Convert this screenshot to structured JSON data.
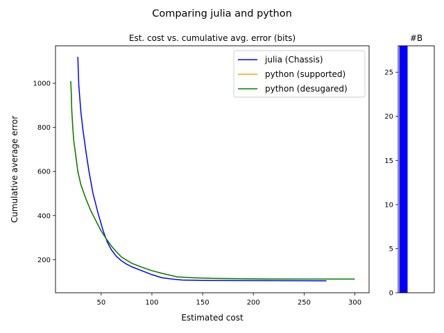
{
  "suptitle": "Comparing julia and python",
  "chart_data": [
    {
      "type": "line",
      "title": "Est. cost vs. cumulative avg. error (bits)",
      "xlabel": "Estimated cost",
      "ylabel": "Cumulative average error",
      "xlim": [
        5,
        314
      ],
      "ylim": [
        50,
        1170
      ],
      "xticks": [
        50,
        100,
        150,
        200,
        250,
        300
      ],
      "yticks": [
        200,
        400,
        600,
        800,
        1000
      ],
      "grid": false,
      "legend_position": "top-right",
      "series": [
        {
          "name": "julia (Chassis)",
          "color": "#0000ff",
          "x": [
            27,
            27.5,
            28,
            29,
            30,
            32,
            35,
            38,
            42,
            47,
            52,
            56,
            60,
            65,
            70,
            75,
            80,
            90,
            100,
            110,
            120,
            130,
            150,
            200,
            272
          ],
          "y": [
            1120,
            1050,
            990,
            930,
            870,
            790,
            690,
            600,
            500,
            410,
            330,
            280,
            245,
            215,
            195,
            180,
            168,
            150,
            132,
            118,
            112,
            108,
            106,
            105,
            104
          ]
        },
        {
          "name": "python (supported)",
          "color": "#ffa500",
          "x": [
            20,
            20.5,
            21,
            22,
            23,
            25,
            27,
            30,
            35,
            40,
            45,
            50,
            55,
            60,
            65,
            70,
            80,
            90,
            100,
            110,
            125,
            140,
            160,
            200,
            250,
            300
          ],
          "y": [
            1010,
            960,
            880,
            800,
            740,
            670,
            600,
            540,
            475,
            420,
            375,
            330,
            295,
            262,
            236,
            212,
            184,
            166,
            150,
            138,
            122,
            118,
            115,
            113,
            112,
            112
          ]
        },
        {
          "name": "python (desugared)",
          "color": "#008000",
          "x": [
            20,
            20.5,
            21,
            22,
            23,
            25,
            27,
            30,
            35,
            40,
            45,
            50,
            55,
            60,
            65,
            70,
            80,
            90,
            100,
            110,
            125,
            140,
            160,
            200,
            250,
            300
          ],
          "y": [
            1010,
            960,
            880,
            800,
            740,
            670,
            600,
            540,
            475,
            420,
            375,
            330,
            295,
            262,
            236,
            212,
            184,
            166,
            150,
            138,
            122,
            118,
            115,
            113,
            112,
            112
          ]
        }
      ]
    },
    {
      "type": "bar",
      "title": "#B",
      "ylim": [
        0,
        28
      ],
      "yticks": [
        0,
        5,
        10,
        15,
        20,
        25
      ],
      "xlim": [
        0,
        10
      ],
      "bars": [
        {
          "x0": 0.3,
          "x1": 2.6,
          "value": 28,
          "color": "#0000ff"
        }
      ]
    }
  ]
}
